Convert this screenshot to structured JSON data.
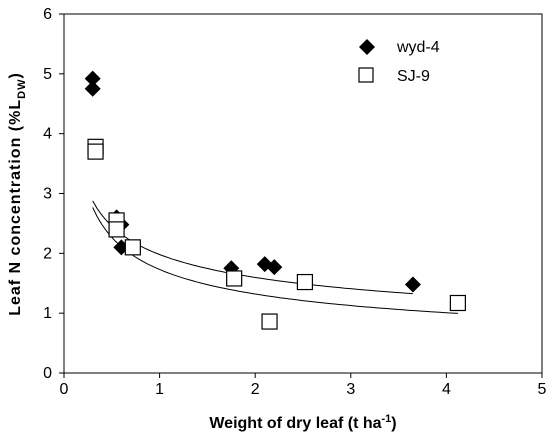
{
  "chart_data": {
    "type": "scatter",
    "xlabel": "Weight of dry leaf (t ha",
    "xlabel_sup": "-1",
    "xlabel_end": ")",
    "ylabel": "Leaf N concentration (%L",
    "ylabel_sub": "DW",
    "ylabel_end": ")",
    "xlim": [
      0,
      5
    ],
    "ylim": [
      0,
      6
    ],
    "xticks": [
      0,
      1,
      2,
      3,
      4,
      5
    ],
    "yticks": [
      0,
      1,
      2,
      3,
      4,
      5,
      6
    ],
    "grid": false,
    "legend_position": "top-right",
    "series": [
      {
        "name": "wyd-4",
        "marker": "diamond-filled",
        "color": "#000000",
        "points": [
          {
            "x": 0.3,
            "y": 4.92
          },
          {
            "x": 0.3,
            "y": 4.75
          },
          {
            "x": 0.55,
            "y": 2.6
          },
          {
            "x": 0.55,
            "y": 2.55
          },
          {
            "x": 0.6,
            "y": 2.48
          },
          {
            "x": 0.6,
            "y": 2.1
          },
          {
            "x": 1.75,
            "y": 1.75
          },
          {
            "x": 2.1,
            "y": 1.82
          },
          {
            "x": 2.2,
            "y": 1.77
          },
          {
            "x": 3.65,
            "y": 1.48
          }
        ],
        "fit": {
          "a": 1.98,
          "b": -0.31,
          "x_from": 0.3,
          "x_to": 3.65
        }
      },
      {
        "name": "SJ-9",
        "marker": "square-open",
        "color": "#000000",
        "points": [
          {
            "x": 0.33,
            "y": 3.78
          },
          {
            "x": 0.33,
            "y": 3.7
          },
          {
            "x": 0.55,
            "y": 2.55
          },
          {
            "x": 0.55,
            "y": 2.4
          },
          {
            "x": 0.72,
            "y": 2.1
          },
          {
            "x": 1.78,
            "y": 1.58
          },
          {
            "x": 2.15,
            "y": 0.86
          },
          {
            "x": 2.52,
            "y": 1.52
          },
          {
            "x": 4.12,
            "y": 1.17
          }
        ],
        "fit": {
          "a": 1.73,
          "b": -0.39,
          "x_from": 0.3,
          "x_to": 4.12
        }
      }
    ]
  }
}
